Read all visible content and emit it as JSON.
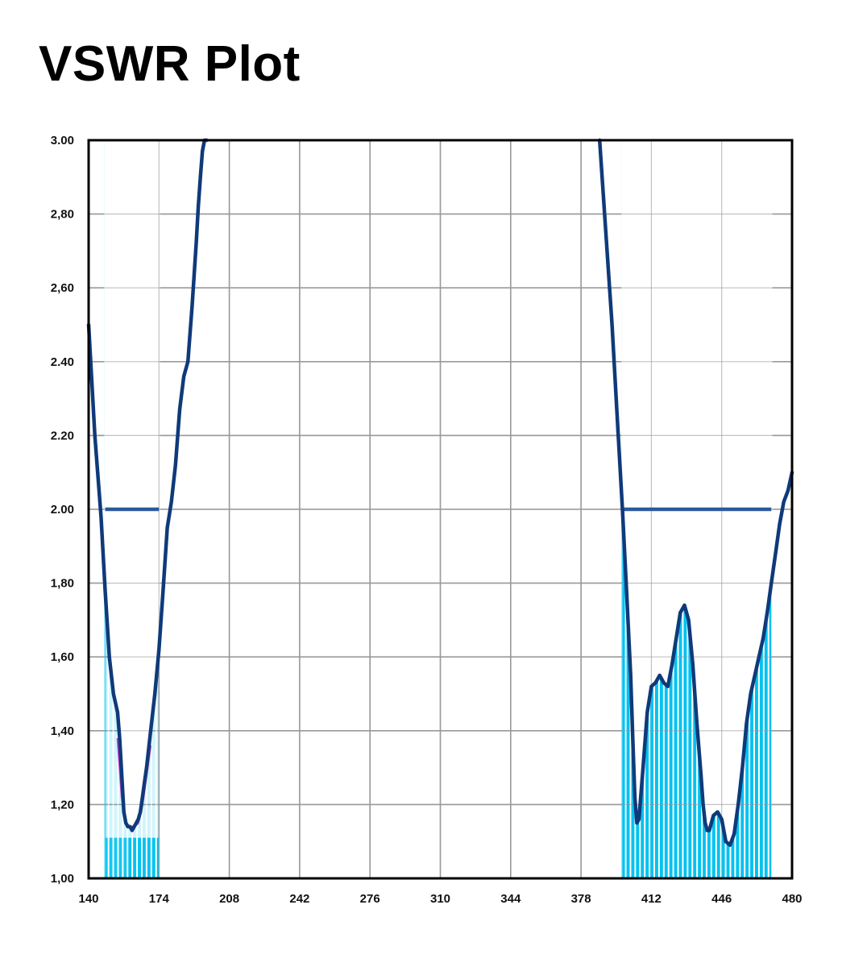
{
  "chart_data": {
    "type": "line",
    "title": "VSWR Plot",
    "xlabel": "",
    "ylabel": "",
    "xlim": [
      140,
      480
    ],
    "ylim": [
      1.0,
      3.0
    ],
    "x_ticks": [
      "140",
      "174",
      "208",
      "242",
      "276",
      "310",
      "344",
      "378",
      "412",
      "446",
      "480"
    ],
    "y_ticks": [
      "1,00",
      "1,20",
      "1,40",
      "1,60",
      "1,80",
      "2.00",
      "2.20",
      "2.40",
      "2,60",
      "2,80",
      "3.00"
    ],
    "grid": true,
    "colors": {
      "vswr_line": "#0f3a7a",
      "limit_line": "#2a5a9c",
      "band_fill": "#00c2f0",
      "secondary_trace": "#d040d0",
      "grid": "#9a9a9a"
    },
    "series": [
      {
        "role": "vswr",
        "x": [
          140,
          143,
          146,
          148,
          150,
          152,
          154,
          155,
          156,
          157,
          158,
          159,
          160,
          161,
          162,
          163,
          164,
          165,
          166,
          167,
          168,
          170,
          172,
          174,
          176,
          178,
          180,
          182,
          184,
          186,
          188,
          190,
          192,
          193,
          194,
          195,
          196,
          197
        ],
        "y": [
          2.5,
          2.2,
          1.98,
          1.78,
          1.6,
          1.5,
          1.45,
          1.38,
          1.28,
          1.18,
          1.15,
          1.14,
          1.14,
          1.13,
          1.14,
          1.15,
          1.16,
          1.18,
          1.22,
          1.26,
          1.3,
          1.4,
          1.5,
          1.62,
          1.78,
          1.95,
          2.02,
          2.12,
          2.27,
          2.36,
          2.4,
          2.55,
          2.72,
          2.82,
          2.9,
          2.97,
          3.0,
          3.0
        ]
      },
      {
        "role": "vswr",
        "x": [
          387,
          390,
          393,
          396,
          398,
          400,
          402,
          403,
          404,
          405,
          406,
          408,
          410,
          412,
          414,
          416,
          418,
          420,
          422,
          424,
          426,
          428,
          430,
          432,
          434,
          436,
          437,
          438,
          439,
          440,
          442,
          444,
          446,
          448,
          450,
          452,
          454,
          456,
          458,
          460,
          462,
          464,
          466,
          468,
          470,
          472,
          474,
          476,
          478,
          480
        ],
        "y": [
          3.0,
          2.75,
          2.5,
          2.2,
          2.0,
          1.78,
          1.55,
          1.38,
          1.22,
          1.15,
          1.16,
          1.3,
          1.45,
          1.52,
          1.53,
          1.55,
          1.53,
          1.52,
          1.58,
          1.65,
          1.72,
          1.74,
          1.7,
          1.58,
          1.42,
          1.28,
          1.2,
          1.15,
          1.13,
          1.13,
          1.17,
          1.18,
          1.16,
          1.1,
          1.09,
          1.12,
          1.2,
          1.3,
          1.42,
          1.5,
          1.55,
          1.6,
          1.65,
          1.72,
          1.8,
          1.88,
          1.96,
          2.02,
          2.05,
          2.1
        ]
      }
    ],
    "secondary_trace": {
      "x": [
        154,
        156,
        158,
        160,
        162,
        164,
        166,
        168,
        170
      ],
      "y": [
        1.38,
        1.22,
        1.15,
        1.14,
        1.14,
        1.15,
        1.2,
        1.28,
        1.36
      ]
    },
    "limit_lines": [
      {
        "value": 2.0,
        "x_start": 148,
        "x_end": 174
      },
      {
        "value": 2.0,
        "x_start": 398,
        "x_end": 470
      }
    ],
    "bands": [
      {
        "x_start": 148,
        "x_end": 174,
        "level": 1.11,
        "solid_from_x": 158
      },
      {
        "x_start": 398,
        "x_end": 470,
        "level": null,
        "solid_from_x": null
      }
    ]
  }
}
